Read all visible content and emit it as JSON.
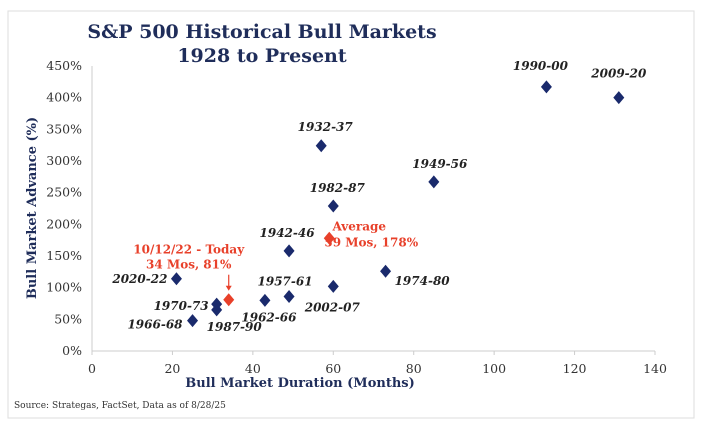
{
  "chart_data": {
    "type": "scatter",
    "title": "S&P 500 Historical Bull Markets",
    "subtitle": "1928 to Present",
    "xlabel": "Bull Market Duration (Months)",
    "ylabel": "Bull Market Advance (%)",
    "xlim": [
      0,
      140
    ],
    "ylim": [
      0,
      450
    ],
    "xticks": [
      0,
      20,
      40,
      60,
      80,
      100,
      120,
      140
    ],
    "yticks": [
      "0%",
      "50%",
      "100%",
      "150%",
      "200%",
      "250%",
      "300%",
      "350%",
      "400%",
      "450%"
    ],
    "grid": false,
    "points": [
      {
        "label": "1990-00",
        "x": 113,
        "y": 417
      },
      {
        "label": "2009-20",
        "x": 131,
        "y": 400
      },
      {
        "label": "1932-37",
        "x": 57,
        "y": 324
      },
      {
        "label": "1949-56",
        "x": 85,
        "y": 267
      },
      {
        "label": "1982-87",
        "x": 60,
        "y": 229
      },
      {
        "label": "1942-46",
        "x": 49,
        "y": 158
      },
      {
        "label": "2020-22",
        "x": 21,
        "y": 114
      },
      {
        "label": "1974-80",
        "x": 73,
        "y": 126
      },
      {
        "label": "2002-07",
        "x": 60,
        "y": 102
      },
      {
        "label": "1957-61",
        "x": 49,
        "y": 86
      },
      {
        "label": "1962-66",
        "x": 43,
        "y": 80
      },
      {
        "label": "1970-73",
        "x": 31,
        "y": 74
      },
      {
        "label": "1987-90",
        "x": 31,
        "y": 65
      },
      {
        "label": "1966-68",
        "x": 25,
        "y": 48
      }
    ],
    "highlights": [
      {
        "label_line1": "Average",
        "label_line2": "59 Mos, 178%",
        "x": 59,
        "y": 178
      },
      {
        "label_line1": "10/12/22 - Today",
        "label_line2": "34 Mos, 81%",
        "x": 34,
        "y": 81
      }
    ],
    "colors": {
      "points": "#1a2a6c",
      "highlight": "#e8402a",
      "title": "#1f2d5a"
    }
  },
  "source": "Source: Strategas, FactSet, Data as of 8/28/25"
}
